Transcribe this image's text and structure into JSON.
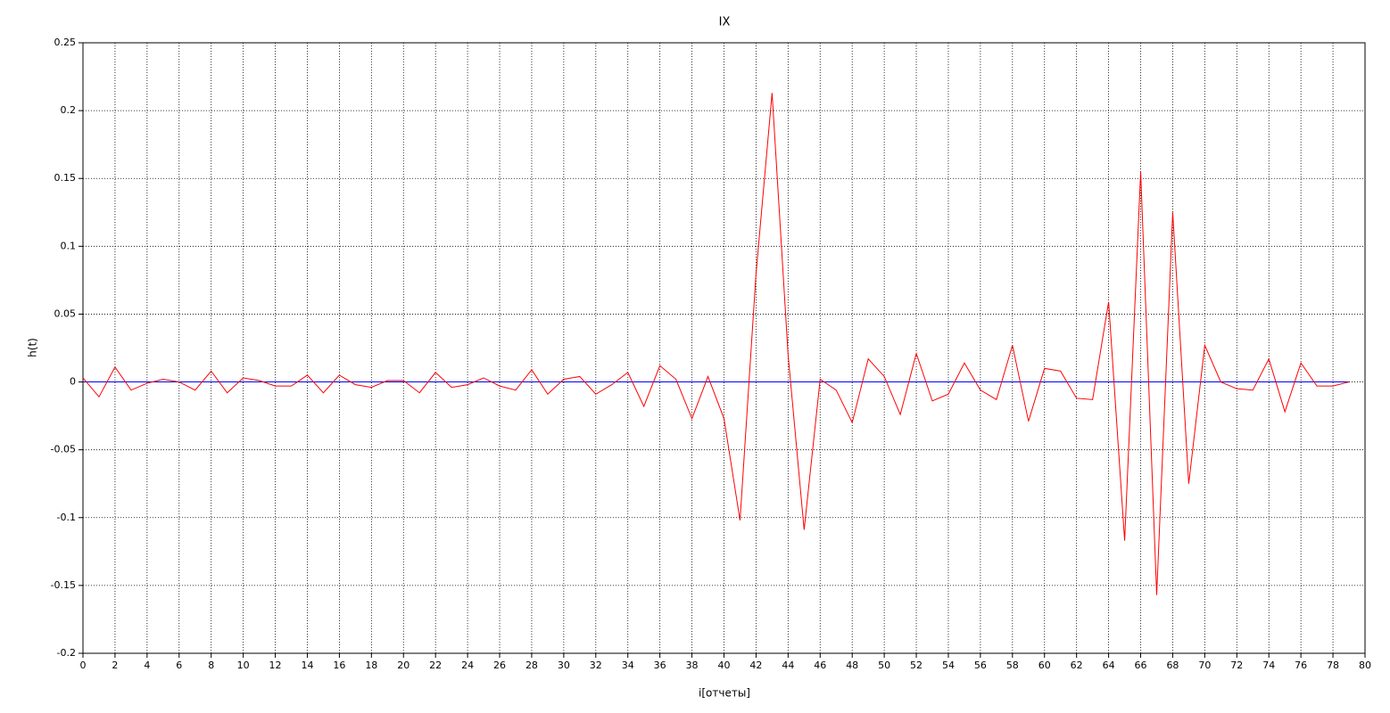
{
  "chart_data": {
    "type": "line",
    "title": "IX",
    "x_label": "i[отчеты]",
    "y_label": "h(t)",
    "x": [
      0,
      1,
      2,
      3,
      4,
      5,
      6,
      7,
      8,
      9,
      10,
      11,
      12,
      13,
      14,
      15,
      16,
      17,
      18,
      19,
      20,
      21,
      22,
      23,
      24,
      25,
      26,
      27,
      28,
      29,
      30,
      31,
      32,
      33,
      34,
      35,
      36,
      37,
      38,
      39,
      40,
      41,
      42,
      43,
      44,
      45,
      46,
      47,
      48,
      49,
      50,
      51,
      52,
      53,
      54,
      55,
      56,
      57,
      58,
      59,
      60,
      61,
      62,
      63,
      64,
      65,
      66,
      67,
      68,
      69,
      70,
      71,
      72,
      73,
      74,
      75,
      76,
      77,
      78,
      79
    ],
    "series": [
      {
        "color": "#ff0000",
        "values": [
          0.003,
          -0.011,
          0.011,
          -0.006,
          -0.001,
          0.002,
          0.0,
          -0.006,
          0.008,
          -0.008,
          0.003,
          0.001,
          -0.003,
          -0.003,
          0.005,
          -0.008,
          0.005,
          -0.002,
          -0.004,
          0.001,
          0.001,
          -0.008,
          0.007,
          -0.004,
          -0.002,
          0.003,
          -0.003,
          -0.006,
          0.009,
          -0.009,
          0.002,
          0.004,
          -0.009,
          -0.002,
          0.007,
          -0.018,
          0.012,
          0.002,
          -0.027,
          0.004,
          -0.027,
          -0.102,
          0.08,
          0.213,
          0.02,
          -0.109,
          0.002,
          -0.006,
          -0.03,
          0.017,
          0.004,
          -0.024,
          0.021,
          -0.014,
          -0.009,
          0.014,
          -0.006,
          -0.013,
          0.027,
          -0.029,
          0.01,
          0.008,
          -0.012,
          -0.013,
          0.059,
          -0.117,
          0.155,
          -0.157,
          0.125,
          -0.075,
          0.027,
          0.0,
          -0.005,
          -0.006,
          0.017,
          -0.022,
          0.014,
          -0.003,
          -0.003,
          0.0
        ]
      },
      {
        "color": "#0000ff",
        "values": [
          0,
          0,
          0,
          0,
          0,
          0,
          0,
          0,
          0,
          0,
          0,
          0,
          0,
          0,
          0,
          0,
          0,
          0,
          0,
          0,
          0,
          0,
          0,
          0,
          0,
          0,
          0,
          0,
          0,
          0,
          0,
          0,
          0,
          0,
          0,
          0,
          0,
          0,
          0,
          0,
          0,
          0,
          0,
          0,
          0,
          0,
          0,
          0,
          0,
          0,
          0,
          0,
          0,
          0,
          0,
          0,
          0,
          0,
          0,
          0,
          0,
          0,
          0,
          0,
          0,
          0,
          0,
          0,
          0,
          0,
          0,
          0,
          0,
          0,
          0,
          0,
          0,
          0,
          0,
          0
        ]
      }
    ],
    "xlim": [
      0,
      80
    ],
    "xticks": [
      0,
      2,
      4,
      6,
      8,
      10,
      12,
      14,
      16,
      18,
      20,
      22,
      24,
      26,
      28,
      30,
      32,
      34,
      36,
      38,
      40,
      42,
      44,
      46,
      48,
      50,
      52,
      54,
      56,
      58,
      60,
      62,
      64,
      66,
      68,
      70,
      72,
      74,
      76,
      78,
      80
    ],
    "ylim": [
      -0.2,
      0.25
    ],
    "yticks": [
      -0.2,
      -0.15,
      -0.1,
      -0.05,
      0,
      0.05,
      0.1,
      0.15,
      0.2,
      0.25
    ],
    "grid": true
  }
}
